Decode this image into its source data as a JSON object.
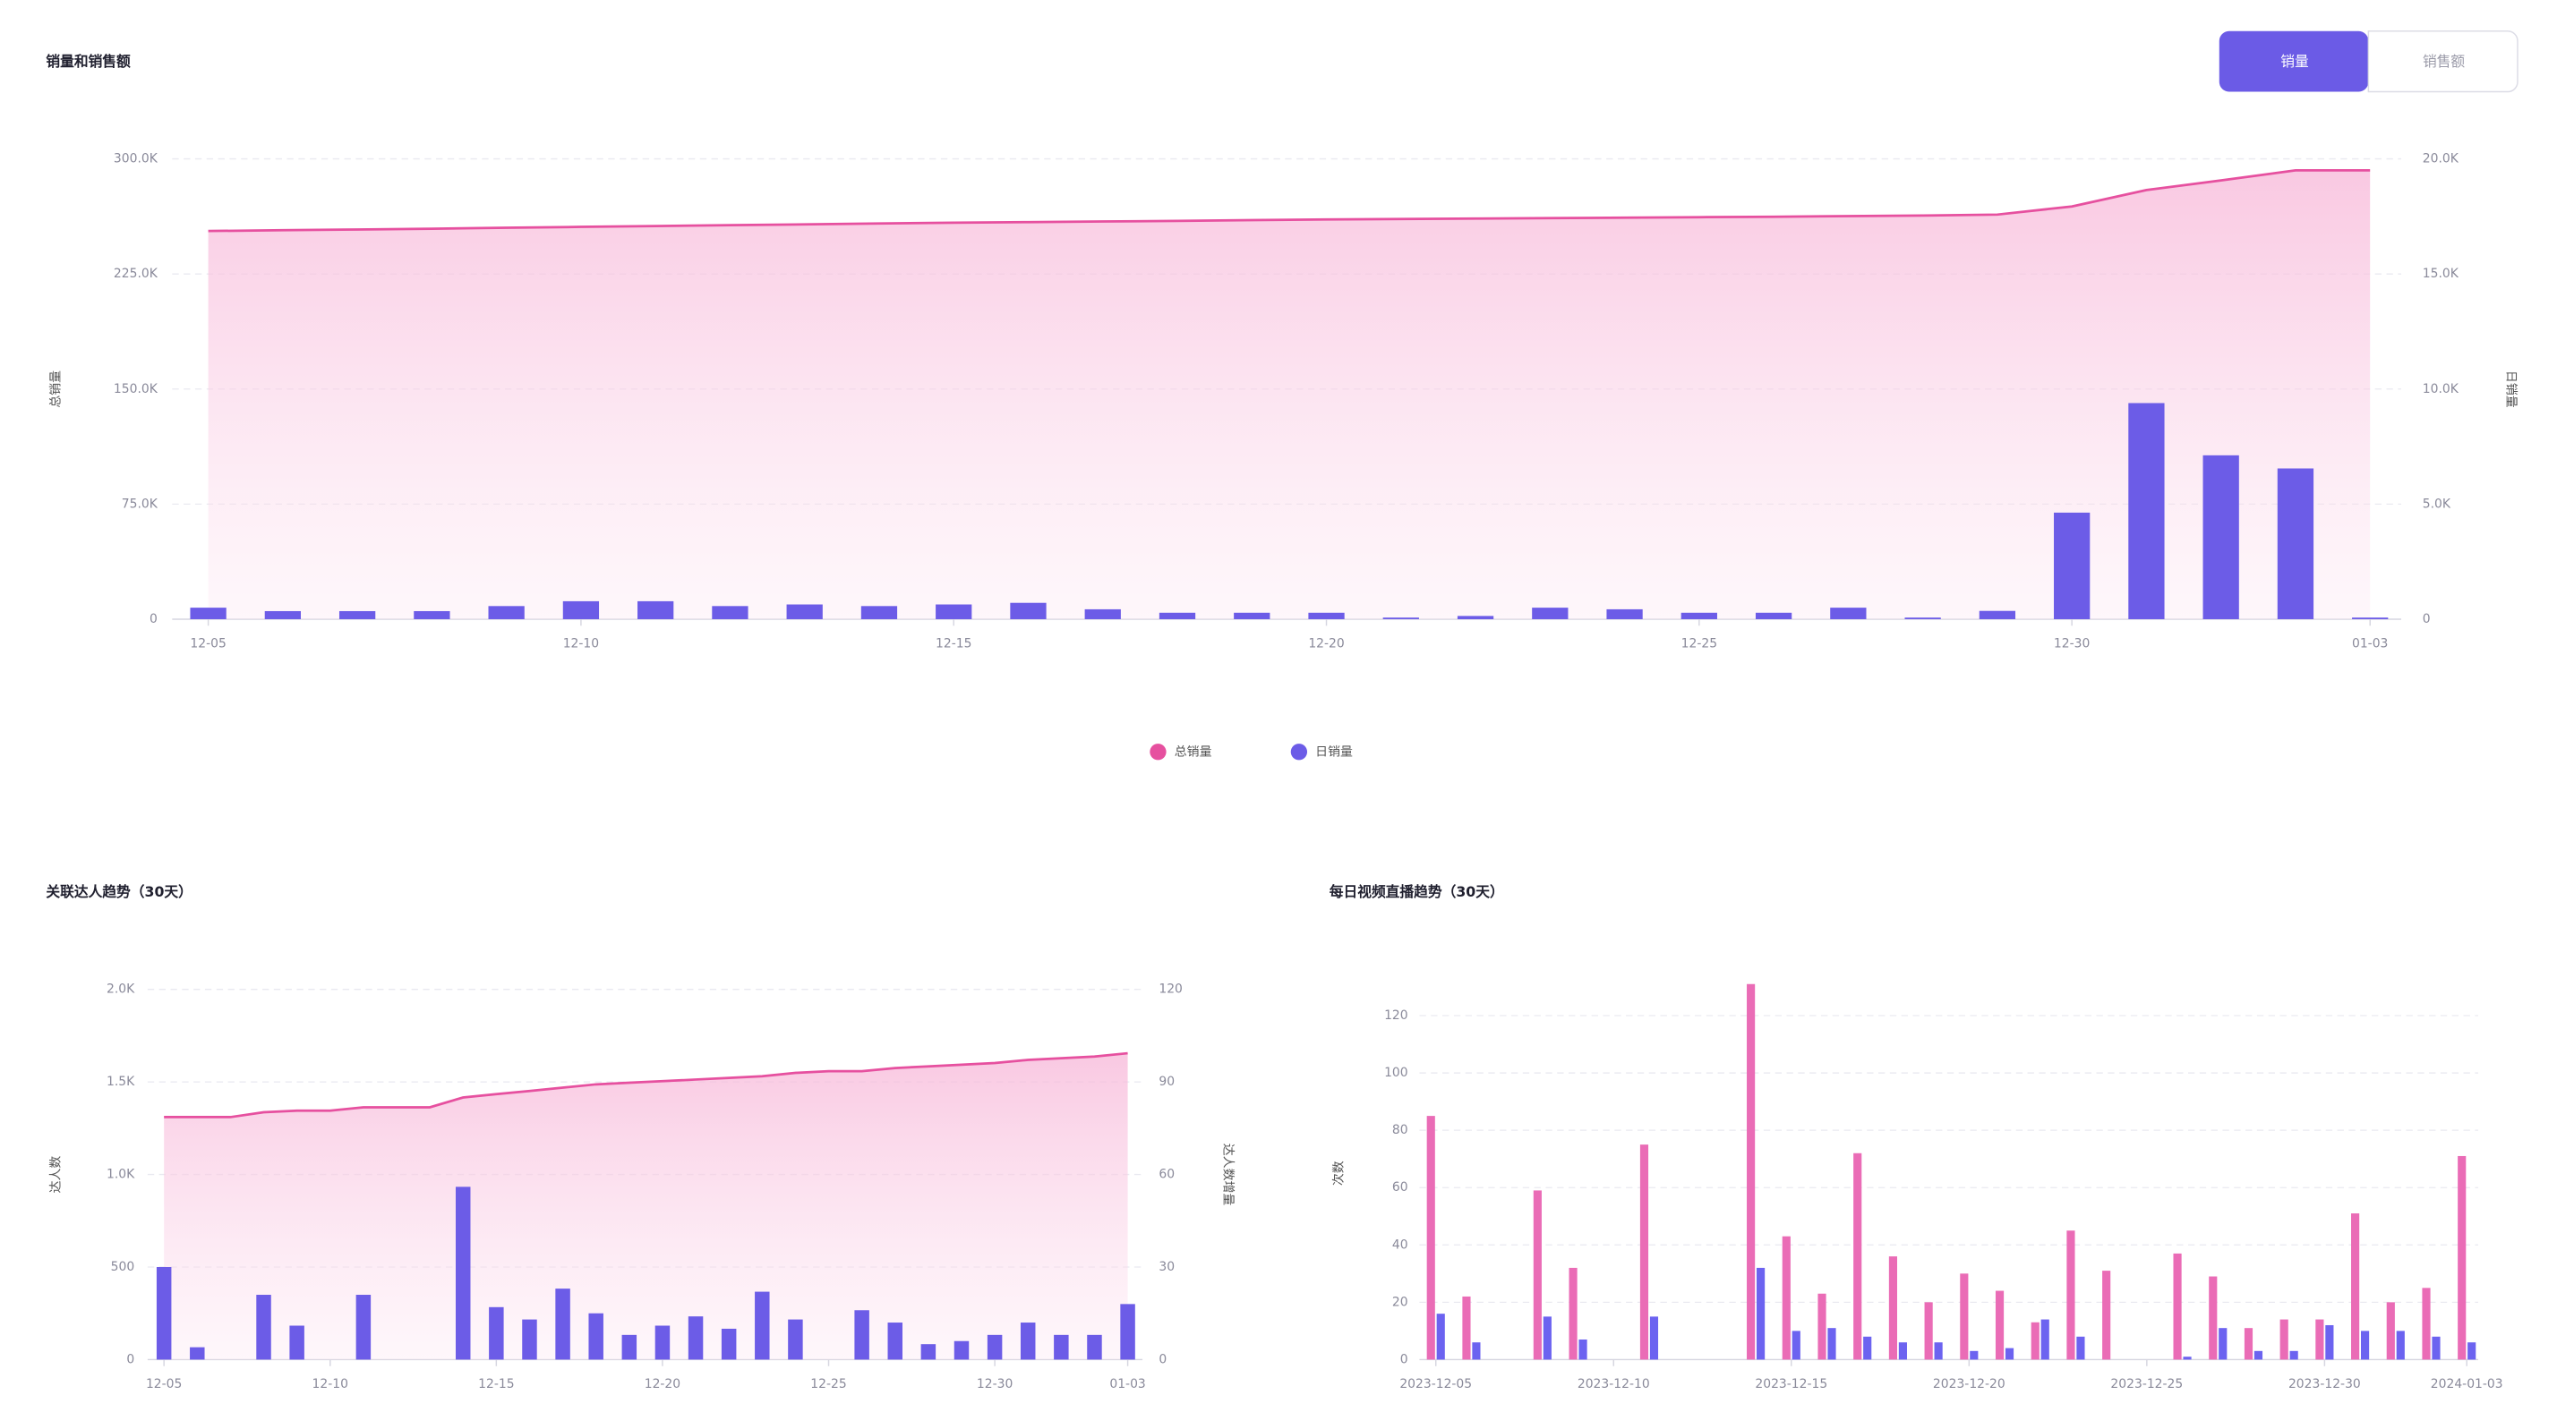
{
  "toggle": [
    "销量",
    "销售额"
  ],
  "chart_data": [
    {
      "type": "line-bar",
      "title": "销量和销售额",
      "ylabel": "总销量",
      "y2label": "日销量",
      "legend": "bottom",
      "grid": true,
      "categories": [
        "12-05",
        null,
        null,
        null,
        null,
        "12-10",
        null,
        null,
        null,
        null,
        "12-15",
        null,
        null,
        null,
        null,
        "12-20",
        null,
        null,
        null,
        null,
        "12-25",
        null,
        null,
        null,
        null,
        "12-30",
        null,
        null,
        null,
        "01-03"
      ],
      "ylim": [
        0,
        300000
      ],
      "yticks": [
        0,
        {
          "value": 75000,
          "label": "75.0K"
        },
        {
          "value": 150000,
          "label": "150.0K"
        },
        {
          "value": 225000,
          "label": "225.0K"
        },
        {
          "value": 300000,
          "label": "300.0K"
        }
      ],
      "y2lim": [
        0,
        20000
      ],
      "y2ticks": [
        0,
        {
          "value": 5000,
          "label": "5.0K"
        },
        {
          "value": 10000,
          "label": "10.0K"
        },
        {
          "value": 15000,
          "label": "15.0K"
        },
        {
          "value": 20000,
          "label": "20.0K"
        }
      ],
      "series": [
        {
          "name": "总销量",
          "type": "line",
          "color": "#e6509f",
          "values": [
            253000,
            253500,
            254000,
            254500,
            255100,
            255700,
            256200,
            256800,
            257300,
            257900,
            258400,
            258800,
            259200,
            259600,
            260100,
            260500,
            260800,
            261100,
            261400,
            261700,
            262000,
            262300,
            262700,
            263100,
            263700,
            269000,
            279700,
            286000,
            292500,
            292500
          ]
        },
        {
          "name": "日销量",
          "type": "bar",
          "axis": "y2",
          "color": "#6c5ce7",
          "values": [
            500,
            350,
            350,
            350,
            570,
            780,
            780,
            570,
            640,
            570,
            640,
            710,
            430,
            280,
            280,
            280,
            70,
            140,
            500,
            430,
            280,
            280,
            500,
            70,
            360,
            4630,
            9390,
            7120,
            6550,
            70
          ]
        }
      ]
    },
    {
      "type": "line-bar",
      "title": "关联达人趋势（30天）",
      "ylabel": "达人数",
      "y2label": "达人数增量",
      "grid": true,
      "categories": [
        "12-05",
        null,
        null,
        null,
        null,
        "12-10",
        null,
        null,
        null,
        null,
        "12-15",
        null,
        null,
        null,
        null,
        "12-20",
        null,
        null,
        null,
        null,
        "12-25",
        null,
        null,
        null,
        null,
        "12-30",
        null,
        null,
        null,
        "01-03"
      ],
      "ylim": [
        0,
        2000
      ],
      "yticks": [
        0,
        500,
        {
          "value": 1000,
          "label": "1.0K"
        },
        {
          "value": 1500,
          "label": "1.5K"
        },
        {
          "value": 2000,
          "label": "2.0K"
        }
      ],
      "y2lim": [
        0,
        120
      ],
      "y2ticks": [
        0,
        30,
        60,
        90,
        120
      ],
      "series": [
        {
          "type": "line",
          "color": "#e6509f",
          "values": [
            1310,
            1310,
            1310,
            1336,
            1345,
            1345,
            1363,
            1363,
            1363,
            1416,
            1434,
            1451,
            1469,
            1487,
            1496,
            1504,
            1513,
            1522,
            1531,
            1549,
            1558,
            1558,
            1575,
            1584,
            1593,
            1602,
            1619,
            1628,
            1637,
            1655
          ]
        },
        {
          "type": "bar",
          "axis": "y2",
          "color": "#6c5ce7",
          "values": [
            30,
            4,
            0,
            21,
            11,
            0,
            21,
            0,
            0,
            56,
            17,
            13,
            23,
            15,
            8,
            11,
            14,
            10,
            22,
            13,
            0,
            16,
            12,
            5,
            6,
            8,
            12,
            8,
            8,
            18
          ]
        }
      ]
    },
    {
      "type": "bar",
      "title": "每日视频直播趋势（30天）",
      "ylabel": "次数",
      "grid": true,
      "categories": [
        "2023-12-05",
        null,
        null,
        null,
        null,
        "2023-12-10",
        null,
        null,
        null,
        null,
        "2023-12-15",
        null,
        null,
        null,
        null,
        "2023-12-20",
        null,
        null,
        null,
        null,
        "2023-12-25",
        null,
        null,
        null,
        null,
        "2023-12-30",
        null,
        null,
        null,
        "2024-01-03"
      ],
      "ylim": [
        0,
        130
      ],
      "yticks": [
        0,
        20,
        40,
        60,
        80,
        100,
        120
      ],
      "series": [
        {
          "color": "#ea6cb6",
          "values": [
            85,
            22,
            0,
            59,
            32,
            0,
            75,
            0,
            0,
            131,
            43,
            23,
            72,
            36,
            20,
            30,
            24,
            13,
            45,
            31,
            0,
            37,
            29,
            11,
            14,
            14,
            51,
            20,
            25,
            71
          ]
        },
        {
          "color": "#6c63f0",
          "values": [
            16,
            6,
            0,
            15,
            7,
            0,
            15,
            0,
            0,
            32,
            10,
            11,
            8,
            6,
            6,
            3,
            4,
            14,
            8,
            0,
            0,
            1,
            11,
            3,
            3,
            12,
            10,
            10,
            8,
            6
          ]
        }
      ]
    }
  ]
}
